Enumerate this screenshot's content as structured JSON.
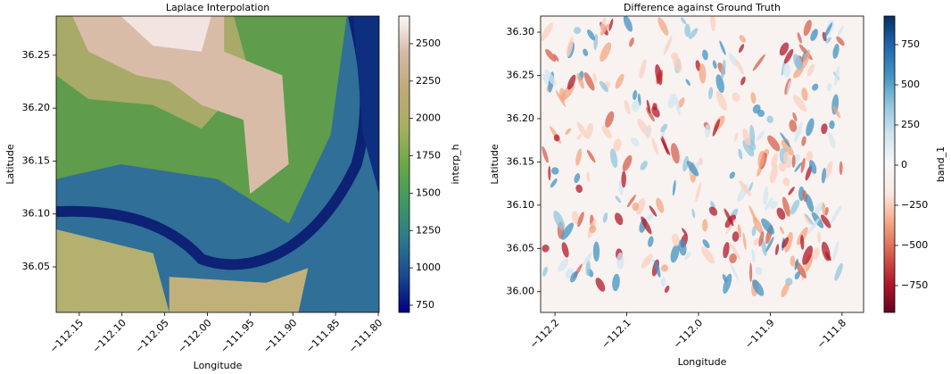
{
  "chart_data": [
    {
      "type": "heatmap",
      "title": "Laplace Interpolation",
      "x_label": "Longitude",
      "y_label": "Latitude",
      "colorbar_label": "interp_h",
      "colormap": "gist_earth",
      "xlim": [
        -112.177,
        -111.799
      ],
      "ylim": [
        36.007,
        36.287
      ],
      "clim": [
        702,
        2685
      ],
      "xticks": [
        {
          "value": -112.15,
          "label": "−112.15"
        },
        {
          "value": -112.1,
          "label": "−112.10"
        },
        {
          "value": -112.05,
          "label": "−112.05"
        },
        {
          "value": -112.0,
          "label": "−112.00"
        },
        {
          "value": -111.95,
          "label": "−111.95"
        },
        {
          "value": -111.9,
          "label": "−111.90"
        },
        {
          "value": -111.85,
          "label": "−111.85"
        },
        {
          "value": -111.8,
          "label": "−111.80"
        }
      ],
      "yticks": [
        {
          "value": 36.05,
          "label": "36.05"
        },
        {
          "value": 36.1,
          "label": "36.10"
        },
        {
          "value": 36.15,
          "label": "36.15"
        },
        {
          "value": 36.2,
          "label": "36.20"
        },
        {
          "value": 36.25,
          "label": "36.25"
        }
      ],
      "cticks": [
        750,
        1000,
        1250,
        1500,
        1750,
        2000,
        2250,
        2500
      ]
    },
    {
      "type": "heatmap",
      "title": "Difference against Ground Truth",
      "x_label": "Longitude",
      "y_label": "Latitude",
      "colorbar_label": "band_1",
      "colormap": "RdBu",
      "xlim": [
        -112.22,
        -111.77
      ],
      "ylim": [
        35.976,
        36.3186
      ],
      "clim": [
        -917,
        928
      ],
      "xticks": [
        {
          "value": -112.2,
          "label": "−112.2"
        },
        {
          "value": -112.1,
          "label": "−112.1"
        },
        {
          "value": -112.0,
          "label": "−112.0"
        },
        {
          "value": -111.9,
          "label": "−111.9"
        },
        {
          "value": -111.8,
          "label": "−111.8"
        }
      ],
      "yticks": [
        {
          "value": 36.0,
          "label": "36.00"
        },
        {
          "value": 36.05,
          "label": "36.05"
        },
        {
          "value": 36.1,
          "label": "36.10"
        },
        {
          "value": 36.15,
          "label": "36.15"
        },
        {
          "value": 36.2,
          "label": "36.20"
        },
        {
          "value": 36.25,
          "label": "36.25"
        },
        {
          "value": 36.3,
          "label": "36.30"
        }
      ],
      "cticks": [
        {
          "value": -750,
          "label": "−750"
        },
        {
          "value": -500,
          "label": "−500"
        },
        {
          "value": -250,
          "label": "−250"
        },
        0,
        250,
        500,
        750
      ]
    }
  ]
}
